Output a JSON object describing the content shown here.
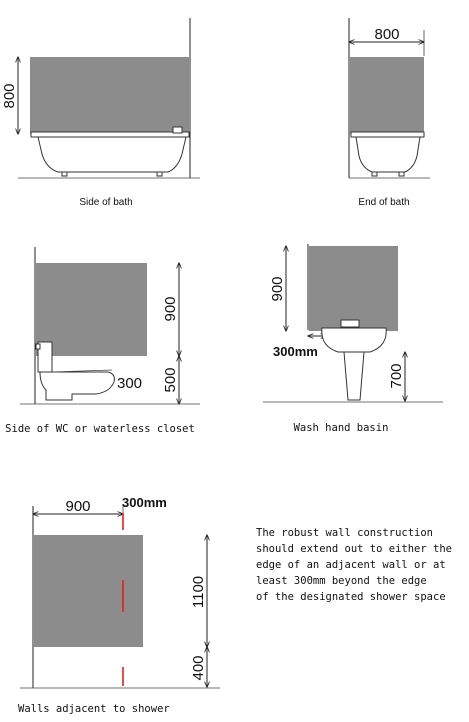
{
  "bath_side": {
    "height_label": "800",
    "caption": "Side of bath"
  },
  "bath_end": {
    "width_label": "800",
    "caption": "End of bath"
  },
  "wc": {
    "upper_label": "900",
    "lower_label": "500",
    "side_label": "300",
    "caption": "Side of WC or waterless closet"
  },
  "basin": {
    "height_label": "900",
    "gap_label": "300mm",
    "floor_label": "700",
    "caption": "Wash hand basin"
  },
  "shower": {
    "width_label": "900",
    "gap_label": "300mm",
    "height_label": "1100",
    "base_label": "400",
    "caption": "Walls adjacent to shower",
    "accent_color": "#e0201c"
  },
  "note": {
    "lines": [
      "The robust wall construction",
      "should extend out to either the",
      "edge of an adjacent wall or at",
      "least 300mm beyond the edge",
      "of the designated shower space"
    ]
  }
}
